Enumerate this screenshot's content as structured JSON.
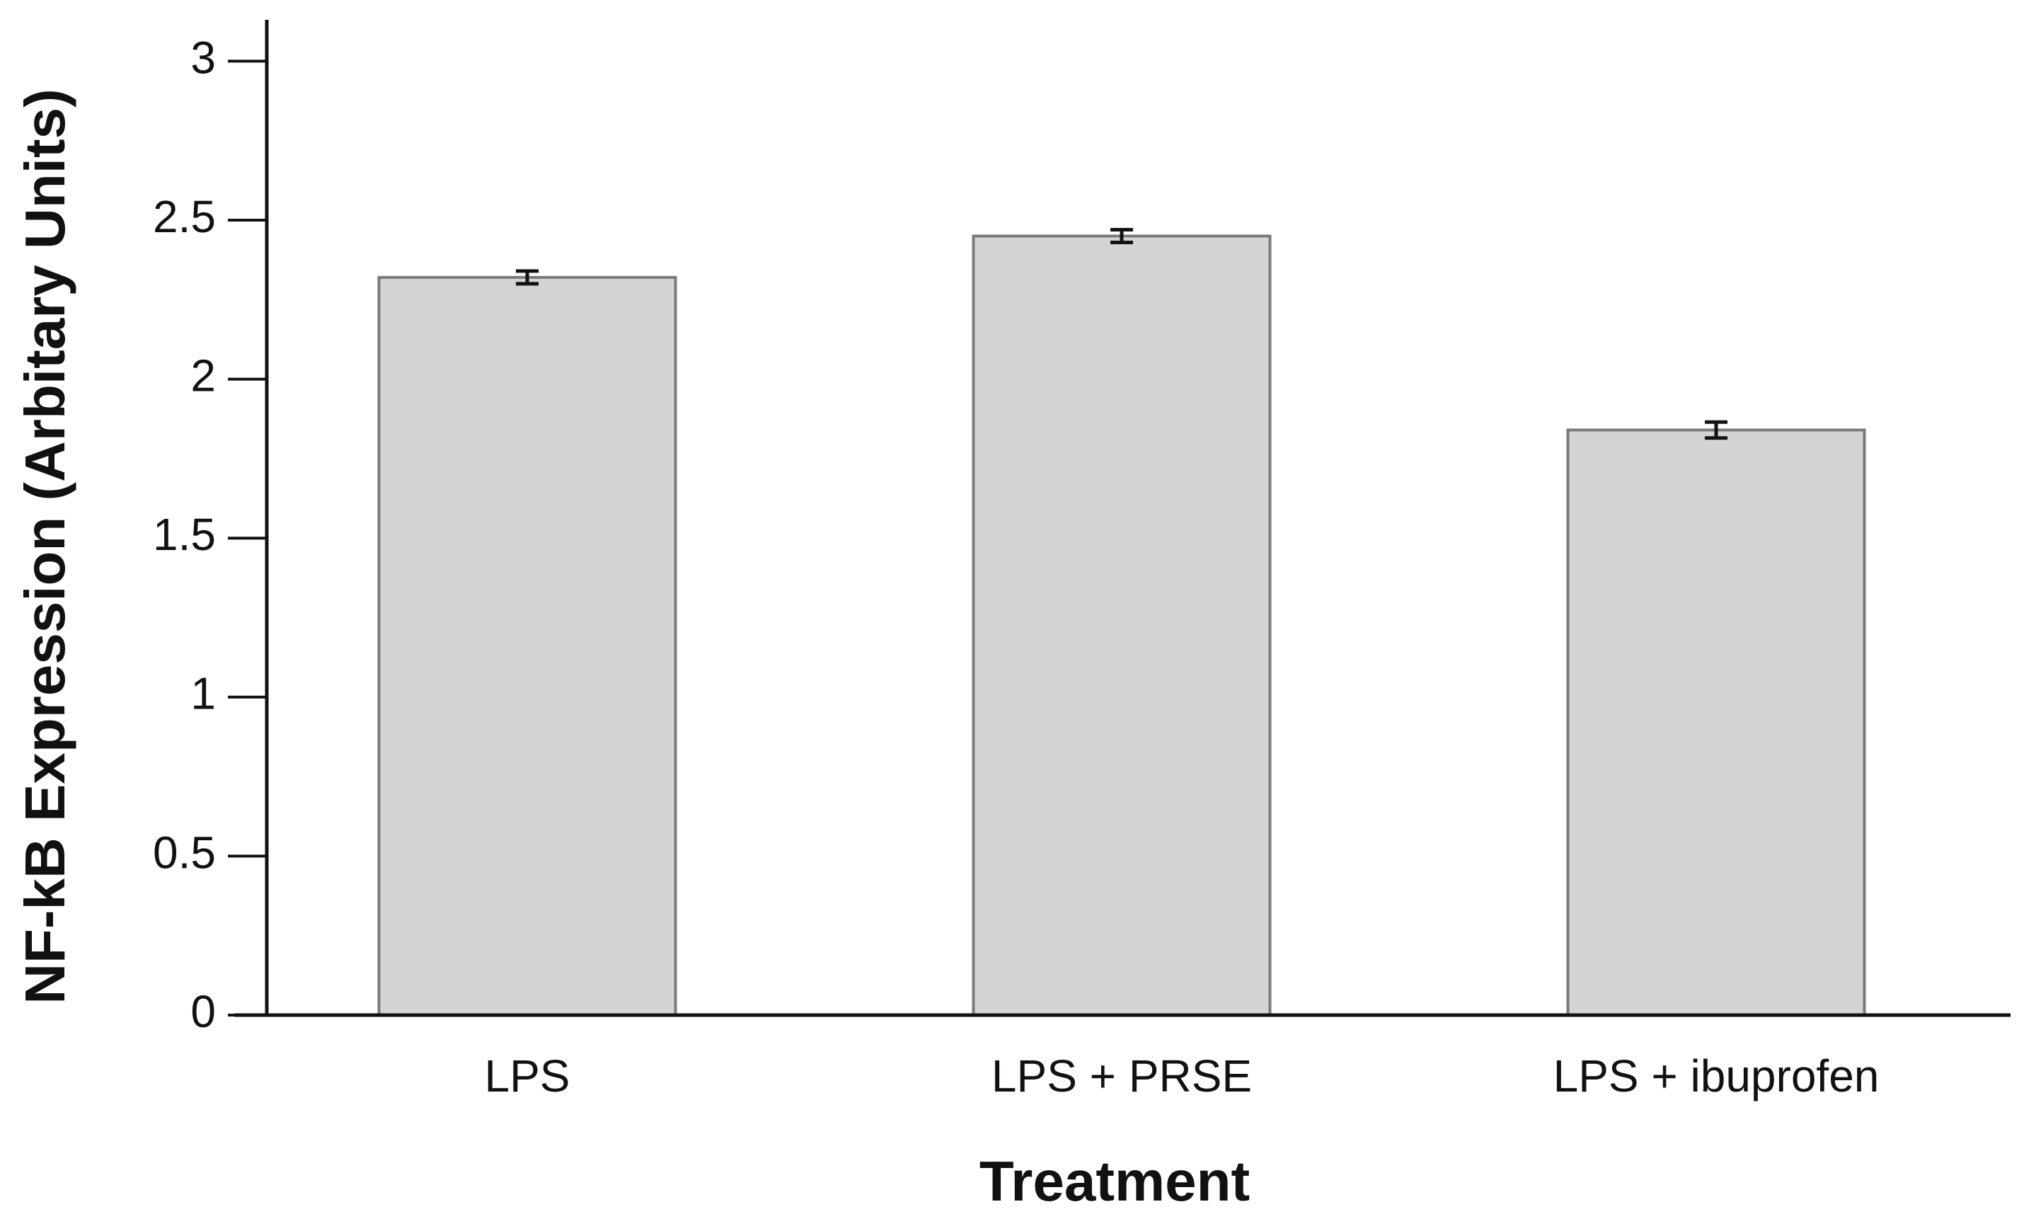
{
  "chart_data": {
    "type": "bar",
    "x_label": "Treatment",
    "y_label": "NF-kB Expression (Arbitary Units)",
    "categories": [
      "LPS",
      "LPS + PRSE",
      "LPS + ibuprofen"
    ],
    "values": [
      2.32,
      2.45,
      1.84
    ],
    "errors": [
      0.02,
      0.02,
      0.025
    ],
    "color": "#d4d4d4",
    "ylim": [
      0,
      3.13
    ],
    "yticks": [
      0,
      0.5,
      1,
      1.5,
      2,
      2.5,
      3
    ],
    "grid": false
  }
}
